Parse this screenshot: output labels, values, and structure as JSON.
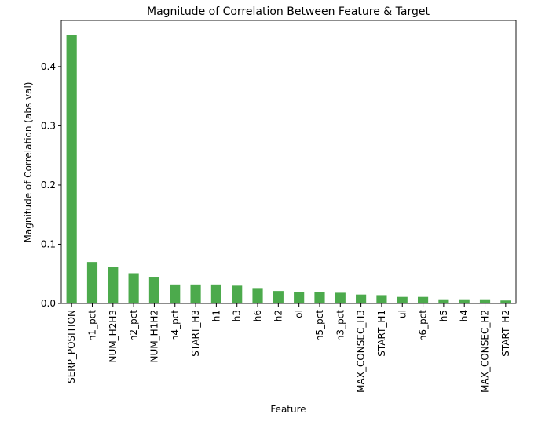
{
  "chart_data": {
    "type": "bar",
    "title": "Magnitude of Correlation Between Feature & Target",
    "xlabel": "Feature",
    "ylabel": "Magnitude of Correlation (abs val)",
    "ylim": [
      0,
      0.478
    ],
    "yticks": [
      0.0,
      0.1,
      0.2,
      0.3,
      0.4
    ],
    "ytick_labels": [
      "0.0",
      "0.1",
      "0.2",
      "0.3",
      "0.4"
    ],
    "grid": false,
    "bar_color": "#4caa4c",
    "categories": [
      "SERP_POSITION",
      "h1_pct",
      "NUM_H2H3",
      "h2_pct",
      "NUM_H1H2",
      "h4_pct",
      "START_H3",
      "h1",
      "h3",
      "h6",
      "h2",
      "ol",
      "h5_pct",
      "h3_pct",
      "MAX_CONSEC_H3",
      "START_H1",
      "ul",
      "h6_pct",
      "h5",
      "h4",
      "MAX_CONSEC_H2",
      "START_H2"
    ],
    "values": [
      0.454,
      0.07,
      0.061,
      0.051,
      0.045,
      0.032,
      0.032,
      0.032,
      0.03,
      0.026,
      0.021,
      0.019,
      0.019,
      0.018,
      0.015,
      0.014,
      0.011,
      0.011,
      0.007,
      0.007,
      0.007,
      0.005
    ]
  }
}
